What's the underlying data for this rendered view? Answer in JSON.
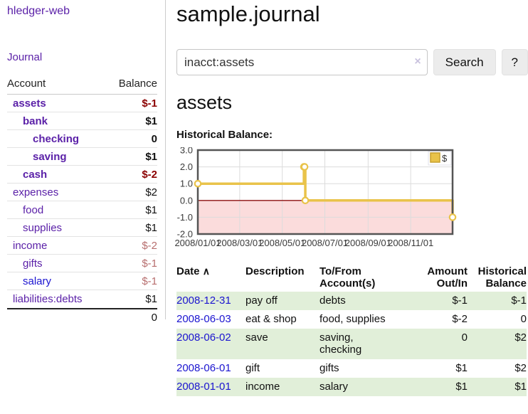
{
  "colors": {
    "link_purple": "#5b21a8",
    "link_blue": "#1b14d0",
    "neg_strong": "#8b0000",
    "neg_soft": "#b76e6e",
    "table_neg": "#9e2222",
    "row_green": "#e1efd9",
    "series_gold": "#e9c34a",
    "negative_region_pink": "#fbdcdc",
    "zero_line_red": "#8b1010",
    "chart_border_gray": "#545454"
  },
  "sidebar": {
    "brand": "hledger-web",
    "nav_journal": "Journal",
    "accounts": {
      "header_account": "Account",
      "header_balance": "Balance",
      "rows": [
        {
          "name": "assets",
          "balance": "$-1",
          "level": 1,
          "bold": true,
          "bal_style": "neg-strong",
          "name_color": "purple"
        },
        {
          "name": "bank",
          "balance": "$1",
          "level": 2,
          "bold": true,
          "bal_style": "pos",
          "name_color": "purple"
        },
        {
          "name": "checking",
          "balance": "0",
          "level": 3,
          "bold": true,
          "bal_style": "pos",
          "name_color": "purple"
        },
        {
          "name": "saving",
          "balance": "$1",
          "level": 3,
          "bold": true,
          "bal_style": "pos",
          "name_color": "purple"
        },
        {
          "name": "cash",
          "balance": "$-2",
          "level": 2,
          "bold": true,
          "bal_style": "neg-strong",
          "name_color": "purple"
        },
        {
          "name": "expenses",
          "balance": "$2",
          "level": 1,
          "bold": false,
          "bal_style": "pos",
          "name_color": "purple"
        },
        {
          "name": "food",
          "balance": "$1",
          "level": 2,
          "bold": false,
          "bal_style": "pos",
          "name_color": "purple"
        },
        {
          "name": "supplies",
          "balance": "$1",
          "level": 2,
          "bold": false,
          "bal_style": "pos",
          "name_color": "purple"
        },
        {
          "name": "income",
          "balance": "$-2",
          "level": 1,
          "bold": false,
          "bal_style": "neg-soft",
          "name_color": "purple"
        },
        {
          "name": "gifts",
          "balance": "$-1",
          "level": 2,
          "bold": false,
          "bal_style": "neg-soft",
          "name_color": "purple"
        },
        {
          "name": "salary",
          "balance": "$-1",
          "level": 2,
          "bold": false,
          "bal_style": "neg-soft",
          "name_color": "blue"
        },
        {
          "name": "liabilities:debts",
          "balance": "$1",
          "level": 1,
          "bold": false,
          "bal_style": "pos",
          "name_color": "purple"
        }
      ],
      "total": "0"
    }
  },
  "header": {
    "title": "sample.journal"
  },
  "search": {
    "value": "inacct:assets",
    "clear_icon": "×",
    "search_button": "Search",
    "help_button": "?"
  },
  "account_page": {
    "heading": "assets",
    "chart_title": "Historical Balance:"
  },
  "chart_data": {
    "type": "line",
    "title": "Historical Balance:",
    "step": true,
    "xlim_days": [
      0,
      365
    ],
    "ylim": [
      -2,
      3
    ],
    "y_ticks": [
      "3.0",
      "2.0",
      "1.0",
      "0.0",
      "-1.0",
      "-2.0"
    ],
    "y_tick_values": [
      3,
      2,
      1,
      0,
      -1,
      -2
    ],
    "x_ticks": [
      {
        "label": "2008/01/01",
        "day": 0
      },
      {
        "label": "2008/03/01",
        "day": 60
      },
      {
        "label": "2008/05/01",
        "day": 121
      },
      {
        "label": "2008/07/01",
        "day": 182
      },
      {
        "label": "2008/09/01",
        "day": 244
      },
      {
        "label": "2008/11/01",
        "day": 305
      }
    ],
    "grid": true,
    "legend": {
      "label": "$",
      "position": "top-right"
    },
    "series": [
      {
        "name": "$",
        "color": "#e9c34a",
        "points": [
          {
            "date": "2008-01-01",
            "day": 0,
            "value": 1
          },
          {
            "date": "2008-06-01",
            "day": 152,
            "value": 2
          },
          {
            "date": "2008-06-02",
            "day": 153,
            "value": 2
          },
          {
            "date": "2008-06-03",
            "day": 154,
            "value": 0
          },
          {
            "date": "2008-12-31",
            "day": 365,
            "value": -1
          }
        ]
      }
    ]
  },
  "register": {
    "headers": {
      "date": "Date",
      "date_sort_icon": "∧",
      "description": "Description",
      "accounts": "To/From Account(s)",
      "amount": "Amount Out/In",
      "balance": "Historical Balance"
    },
    "rows": [
      {
        "date": "2008-12-31",
        "description": "pay off",
        "accounts": "debts",
        "amount": "$-1",
        "amount_neg": true,
        "balance": "$-1",
        "balance_neg": true,
        "green": true
      },
      {
        "date": "2008-06-03",
        "description": "eat & shop",
        "accounts": "food, supplies",
        "amount": "$-2",
        "amount_neg": true,
        "balance": "0",
        "balance_neg": false,
        "green": false
      },
      {
        "date": "2008-06-02",
        "description": "save",
        "accounts": "saving, checking",
        "amount": "0",
        "amount_neg": false,
        "balance": "$2",
        "balance_neg": false,
        "green": true
      },
      {
        "date": "2008-06-01",
        "description": "gift",
        "accounts": "gifts",
        "amount": "$1",
        "amount_neg": false,
        "balance": "$2",
        "balance_neg": false,
        "green": false
      },
      {
        "date": "2008-01-01",
        "description": "income",
        "accounts": "salary",
        "amount": "$1",
        "amount_neg": false,
        "balance": "$1",
        "balance_neg": false,
        "green": true
      }
    ]
  }
}
